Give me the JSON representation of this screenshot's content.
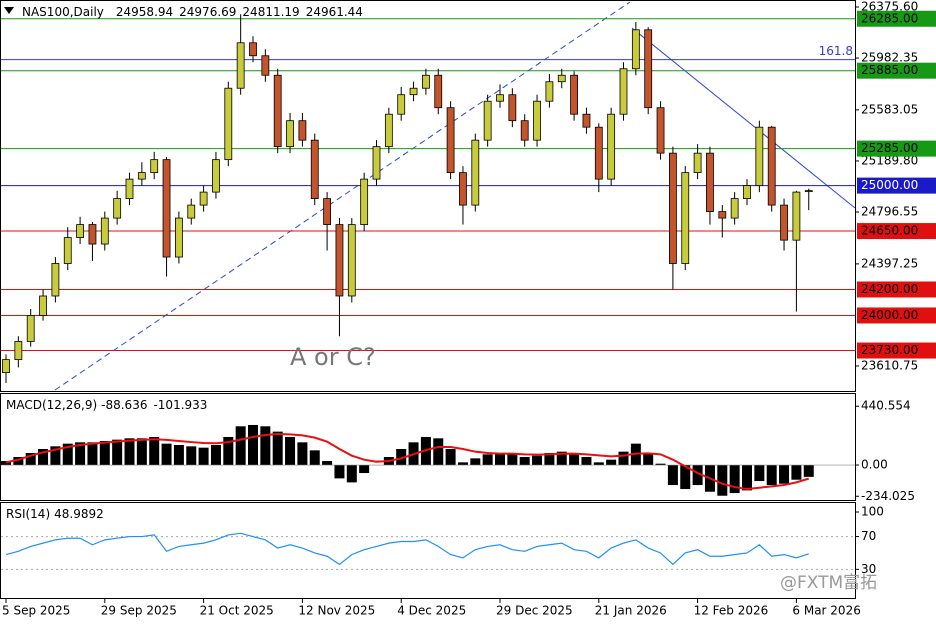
{
  "chart_data": {
    "type": "candlestick",
    "symbol": "NAS100,Daily",
    "categories": [
      "5 Sep 2025",
      null,
      null,
      null,
      null,
      null,
      null,
      null,
      "29 Sep 2025",
      null,
      null,
      null,
      null,
      null,
      null,
      null,
      "21 Oct 2025",
      null,
      null,
      null,
      null,
      null,
      null,
      null,
      "12 Nov 2025",
      null,
      null,
      null,
      null,
      null,
      null,
      null,
      "4 Dec 2025",
      null,
      null,
      null,
      null,
      null,
      null,
      null,
      "29 Dec 2025",
      null,
      null,
      null,
      null,
      null,
      null,
      null,
      "21 Jan 2026",
      null,
      null,
      null,
      null,
      null,
      null,
      null,
      "12 Feb 2026",
      null,
      null,
      null,
      null,
      null,
      null,
      null,
      "6 Mar 2026",
      null
    ],
    "candles": {
      "open": [
        23560,
        23660,
        23800,
        24000,
        24150,
        24400,
        24600,
        24700,
        24550,
        24750,
        24900,
        25050,
        25100,
        25200,
        24450,
        24750,
        24850,
        24950,
        25200,
        25750,
        26100,
        26000,
        25850,
        25300,
        25500,
        25350,
        24900,
        24700,
        24150,
        24700,
        25050,
        25300,
        25550,
        25700,
        25750,
        25850,
        25600,
        25100,
        24850,
        25350,
        25650,
        25700,
        25500,
        25350,
        25650,
        25800,
        25850,
        25550,
        25450,
        25050,
        25550,
        25900,
        26200,
        25600,
        25250,
        24400,
        25100,
        25250,
        24800,
        24750,
        24900,
        25000,
        25450,
        24850,
        24580,
        24958.94
      ],
      "high": [
        23700,
        23840,
        24050,
        24200,
        24450,
        24680,
        24760,
        24720,
        24800,
        24960,
        25100,
        25180,
        25260,
        25220,
        24800,
        24900,
        25000,
        25260,
        25800,
        26320,
        26150,
        26050,
        25900,
        25560,
        25560,
        25400,
        24950,
        24750,
        24750,
        25100,
        25350,
        25600,
        25760,
        25800,
        25900,
        25900,
        25650,
        25150,
        25400,
        25700,
        25780,
        25750,
        25550,
        25700,
        25860,
        25900,
        25880,
        25600,
        25480,
        25600,
        25950,
        26260,
        26220,
        25650,
        25300,
        25150,
        25320,
        25300,
        24850,
        24950,
        25050,
        25500,
        25460,
        24900,
        24960,
        24976.69
      ],
      "low": [
        23480,
        23600,
        23760,
        23960,
        24100,
        24350,
        24550,
        24420,
        24500,
        24700,
        24850,
        25000,
        25050,
        24300,
        24400,
        24700,
        24800,
        24900,
        25150,
        25700,
        25950,
        25800,
        25250,
        25250,
        25300,
        24850,
        24500,
        23840,
        24100,
        24650,
        25000,
        25250,
        25500,
        25650,
        25700,
        25550,
        25050,
        24700,
        24800,
        25300,
        25600,
        25450,
        25300,
        25300,
        25600,
        25750,
        25500,
        25400,
        24950,
        25000,
        25500,
        25850,
        25550,
        25200,
        24200,
        24350,
        25050,
        24700,
        24600,
        24700,
        24850,
        24950,
        24800,
        24500,
        24030,
        24811.19
      ],
      "close": [
        23660,
        23800,
        24000,
        24150,
        24400,
        24600,
        24700,
        24550,
        24750,
        24900,
        25050,
        25100,
        25200,
        24450,
        24750,
        24850,
        24950,
        25200,
        25750,
        26100,
        26000,
        25850,
        25300,
        25500,
        25350,
        24900,
        24700,
        24150,
        24700,
        25050,
        25300,
        25550,
        25700,
        25750,
        25850,
        25600,
        25100,
        24850,
        25350,
        25650,
        25700,
        25500,
        25350,
        25650,
        25800,
        25850,
        25550,
        25450,
        25050,
        25550,
        25900,
        26200,
        25600,
        25250,
        24400,
        25100,
        25250,
        24800,
        24750,
        24900,
        25000,
        25450,
        24850,
        24580,
        24950,
        24961.44
      ]
    },
    "up_color": "#c8cc3c",
    "down_color": "#c4542c",
    "ylim": [
      23426,
      26414
    ],
    "yticks": [
      {
        "value": 26375.6,
        "label": "26375.60"
      },
      {
        "value": 25982.35,
        "label": "25982.35"
      },
      {
        "value": 25583.05,
        "label": "25583.05"
      },
      {
        "value": 25189.8,
        "label": "25189.80"
      },
      {
        "value": 24796.55,
        "label": "24796.55"
      },
      {
        "value": 24397.25,
        "label": "24397.25"
      },
      {
        "value": 23610.75,
        "label": "23610.75"
      }
    ],
    "levels": [
      {
        "value": 26285,
        "label": "26285.00",
        "color": "#169a16"
      },
      {
        "value": 25885,
        "label": "25885.00",
        "color": "#169a16"
      },
      {
        "value": 25285,
        "label": "25285.00",
        "color": "#169a16"
      },
      {
        "value": 25000,
        "label": "25000.00",
        "color": "#1a1ac8"
      },
      {
        "value": 24650,
        "label": "24650.00",
        "color": "#e01010"
      },
      {
        "value": 24200,
        "label": "24200.00",
        "color": "#e01010"
      },
      {
        "value": 24000,
        "label": "24000.00",
        "color": "#e01010"
      },
      {
        "value": 23730,
        "label": "23730.00",
        "color": "#e01010"
      }
    ],
    "fib": {
      "value": 25970,
      "label": "161.8",
      "color": "#3a3ad0"
    },
    "annotation": "A or C?",
    "macd": {
      "label": "MACD(12,26,9)",
      "ylim": [
        -262,
        532
      ],
      "yticks": [
        440.554,
        {
          "value": 0,
          "label": "0.00"
        },
        -234.025
      ],
      "histogram": [
        30,
        60,
        90,
        120,
        140,
        160,
        170,
        170,
        180,
        190,
        200,
        200,
        210,
        160,
        150,
        140,
        130,
        150,
        210,
        290,
        300,
        290,
        250,
        210,
        170,
        110,
        30,
        -100,
        -130,
        -60,
        0,
        60,
        120,
        170,
        210,
        200,
        120,
        20,
        50,
        80,
        90,
        80,
        60,
        70,
        90,
        100,
        80,
        60,
        20,
        40,
        100,
        160,
        90,
        10,
        -150,
        -180,
        -150,
        -200,
        -230,
        -210,
        -190,
        -120,
        -150,
        -140,
        -110,
        -88.636
      ],
      "signal": [
        20,
        40,
        70,
        95,
        115,
        135,
        150,
        160,
        168,
        176,
        183,
        188,
        193,
        188,
        180,
        172,
        165,
        163,
        172,
        190,
        210,
        225,
        232,
        230,
        222,
        205,
        175,
        120,
        70,
        40,
        25,
        30,
        50,
        80,
        112,
        135,
        135,
        120,
        100,
        90,
        85,
        85,
        80,
        78,
        80,
        84,
        85,
        80,
        72,
        65,
        70,
        85,
        87,
        80,
        40,
        -10,
        -60,
        -100,
        -140,
        -165,
        -180,
        -170,
        -160,
        -150,
        -130,
        -101.933
      ],
      "color": "#000000",
      "signal_color": "#e81010"
    },
    "rsi": {
      "label": "RSI(14)",
      "ylim": [
        -5,
        111
      ],
      "yticks": [
        100,
        70,
        30
      ],
      "levels": [
        70,
        30
      ],
      "values": [
        48,
        52,
        58,
        62,
        66,
        68,
        68,
        60,
        66,
        68,
        70,
        70,
        72,
        52,
        58,
        60,
        62,
        66,
        72,
        74,
        70,
        66,
        56,
        60,
        56,
        50,
        46,
        36,
        48,
        54,
        58,
        62,
        64,
        64,
        66,
        58,
        48,
        44,
        54,
        58,
        60,
        54,
        52,
        58,
        60,
        62,
        54,
        52,
        44,
        56,
        62,
        66,
        56,
        50,
        36,
        50,
        54,
        46,
        46,
        48,
        50,
        60,
        46,
        48,
        44,
        48.9892
      ],
      "color": "#1e90ff"
    },
    "watermark": "@FXTM富拓"
  }
}
